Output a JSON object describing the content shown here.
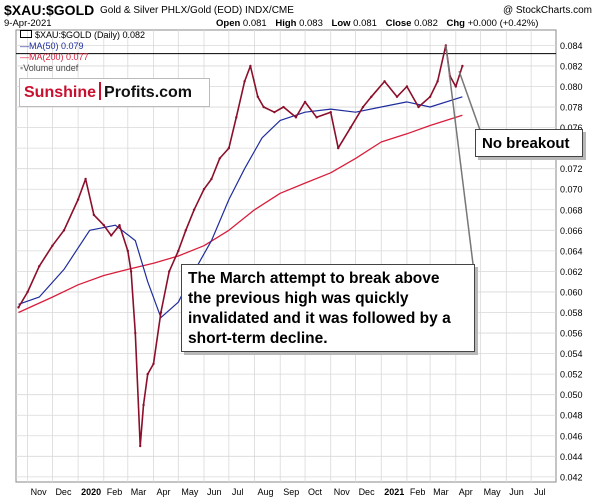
{
  "header": {
    "symbol": "$XAU:$GOLD",
    "name": "Gold & Silver PHLX/Gold (EOD) INDX/CME",
    "copyright": "@ StockCharts.com",
    "date": "9-Apr-2021",
    "ohlc": [
      {
        "label": "Open",
        "value": "0.081"
      },
      {
        "label": "High",
        "value": "0.083"
      },
      {
        "label": "Low",
        "value": "0.081"
      },
      {
        "label": "Close",
        "value": "0.082"
      },
      {
        "label": "Chg",
        "value": "+0.000 (+0.42%)"
      }
    ]
  },
  "legend": {
    "main": "$XAU:$GOLD (Daily) 0.082",
    "ma50": "MA(50) 0.079",
    "ma200": "MA(200) 0.077",
    "volume": "Volume undef"
  },
  "logo": {
    "part1": "Sunshine",
    "part2": "Profits.com"
  },
  "annotations": {
    "no_breakout": "No breakout",
    "main_lines": [
      "The March attempt to break above",
      "the previous high was quickly",
      "invalidated and it was followed by a",
      "short-term decline."
    ]
  },
  "colors": {
    "price": "#8b0f2a",
    "ma50": "#1f2d9c",
    "ma200": "#d81e3c",
    "grid": "#d9d9d9",
    "callout_line": "#777777",
    "logo_red": "#c8102e"
  },
  "chart_data": {
    "type": "line",
    "title": "$XAU:$GOLD",
    "ylim": [
      0.0415,
      0.0855
    ],
    "y_ticks": [
      "0.084",
      "0.082",
      "0.080",
      "0.078",
      "0.076",
      "0.074",
      "0.072",
      "0.070",
      "0.068",
      "0.066",
      "0.064",
      "0.062",
      "0.060",
      "0.058",
      "0.056",
      "0.054",
      "0.052",
      "0.050",
      "0.048",
      "0.046",
      "0.044",
      "0.042"
    ],
    "x_ticks": [
      "Nov",
      "Dec",
      "2020",
      "Feb",
      "Mar",
      "Apr",
      "May",
      "Jun",
      "Jul",
      "Aug",
      "Sep",
      "Oct",
      "Nov",
      "Dec",
      "2021",
      "Feb",
      "Mar",
      "Apr",
      "May",
      "Jun",
      "Jul"
    ],
    "bold_x_ticks": [
      "2020",
      "2021"
    ],
    "resistance_level": 0.0832,
    "series": [
      {
        "name": "$XAU:$GOLD",
        "x": [
          "2019-10-21",
          "2019-11-01",
          "2019-11-15",
          "2019-12-01",
          "2019-12-15",
          "2020-01-01",
          "2020-01-10",
          "2020-01-20",
          "2020-02-01",
          "2020-02-10",
          "2020-02-20",
          "2020-03-01",
          "2020-03-05",
          "2020-03-10",
          "2020-03-16",
          "2020-03-20",
          "2020-03-25",
          "2020-04-01",
          "2020-04-10",
          "2020-04-20",
          "2020-05-01",
          "2020-05-10",
          "2020-05-20",
          "2020-06-01",
          "2020-06-10",
          "2020-06-20",
          "2020-07-01",
          "2020-07-10",
          "2020-07-20",
          "2020-07-27",
          "2020-08-05",
          "2020-08-12",
          "2020-08-25",
          "2020-09-05",
          "2020-09-20",
          "2020-10-01",
          "2020-10-15",
          "2020-11-01",
          "2020-11-10",
          "2020-11-25",
          "2020-12-10",
          "2020-12-20",
          "2021-01-05",
          "2021-01-20",
          "2021-02-01",
          "2021-02-15",
          "2021-03-01",
          "2021-03-10",
          "2021-03-20",
          "2021-03-25",
          "2021-04-01",
          "2021-04-09"
        ],
        "values": [
          0.0585,
          0.06,
          0.0625,
          0.0645,
          0.066,
          0.069,
          0.071,
          0.0675,
          0.0665,
          0.0655,
          0.0665,
          0.064,
          0.062,
          0.056,
          0.045,
          0.049,
          0.052,
          0.053,
          0.058,
          0.062,
          0.064,
          0.066,
          0.068,
          0.07,
          0.071,
          0.073,
          0.074,
          0.077,
          0.0805,
          0.082,
          0.079,
          0.078,
          0.0775,
          0.078,
          0.077,
          0.0785,
          0.077,
          0.0775,
          0.074,
          0.076,
          0.078,
          0.079,
          0.0805,
          0.079,
          0.08,
          0.078,
          0.079,
          0.0805,
          0.084,
          0.081,
          0.08,
          0.082
        ]
      },
      {
        "name": "MA(50)",
        "x": [
          "2019-10-21",
          "2019-11-15",
          "2019-12-15",
          "2020-01-15",
          "2020-02-15",
          "2020-03-10",
          "2020-03-25",
          "2020-04-10",
          "2020-05-01",
          "2020-05-20",
          "2020-06-10",
          "2020-07-01",
          "2020-07-20",
          "2020-08-10",
          "2020-09-01",
          "2020-10-01",
          "2020-11-01",
          "2020-12-01",
          "2021-01-01",
          "2021-02-01",
          "2021-03-01",
          "2021-04-09"
        ],
        "values": [
          0.0588,
          0.0595,
          0.0622,
          0.066,
          0.0665,
          0.065,
          0.061,
          0.0575,
          0.059,
          0.062,
          0.065,
          0.069,
          0.072,
          0.075,
          0.0767,
          0.0775,
          0.0778,
          0.0775,
          0.078,
          0.0785,
          0.078,
          0.079
        ]
      },
      {
        "name": "MA(200)",
        "x": [
          "2019-10-21",
          "2019-12-01",
          "2020-01-01",
          "2020-02-01",
          "2020-03-01",
          "2020-04-01",
          "2020-05-01",
          "2020-06-01",
          "2020-07-01",
          "2020-08-01",
          "2020-09-01",
          "2020-10-01",
          "2020-11-01",
          "2020-12-01",
          "2021-01-01",
          "2021-02-01",
          "2021-03-01",
          "2021-04-09"
        ],
        "values": [
          0.058,
          0.0595,
          0.0607,
          0.0616,
          0.0622,
          0.0628,
          0.0635,
          0.0645,
          0.066,
          0.068,
          0.0696,
          0.0706,
          0.0716,
          0.073,
          0.0746,
          0.0754,
          0.0762,
          0.0772
        ]
      }
    ]
  }
}
